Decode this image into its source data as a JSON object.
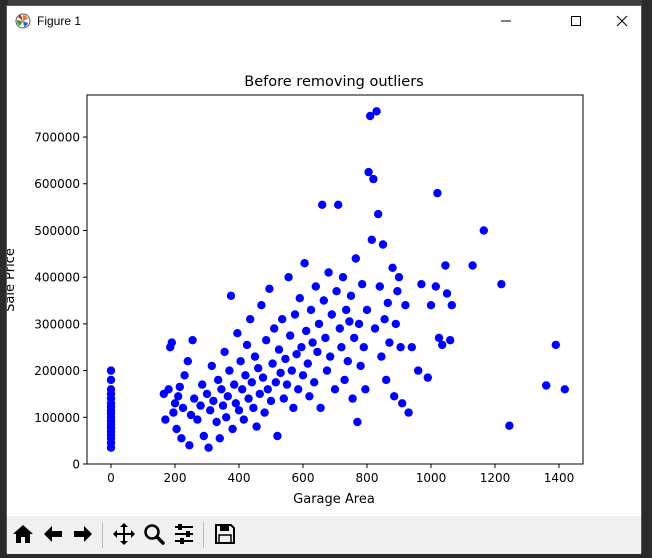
{
  "window": {
    "title": "Figure 1"
  },
  "toolbar": {
    "buttons": [
      {
        "name": "home-icon"
      },
      {
        "name": "back-arrow-icon"
      },
      {
        "name": "forward-arrow-icon"
      },
      {
        "name": "pan-icon"
      },
      {
        "name": "zoom-icon"
      },
      {
        "name": "configure-subplots-icon"
      },
      {
        "name": "save-icon"
      }
    ]
  },
  "colors": {
    "marker": "#0000ff",
    "axes_edge": "#000000"
  },
  "chart_data": {
    "type": "scatter",
    "title": "Before removing outliers",
    "xlabel": "Garage Area",
    "ylabel": "Sale Price",
    "xlim": [
      -75,
      1475
    ],
    "ylim": [
      0,
      790000
    ],
    "xticks": [
      0,
      200,
      400,
      600,
      800,
      1000,
      1200,
      1400
    ],
    "yticks": [
      0,
      100000,
      200000,
      300000,
      400000,
      500000,
      600000,
      700000
    ],
    "xtick_labels": [
      "0",
      "200",
      "400",
      "600",
      "800",
      "1000",
      "1200",
      "1400"
    ],
    "ytick_labels": [
      "0",
      "100000",
      "200000",
      "300000",
      "400000",
      "500000",
      "600000",
      "700000"
    ],
    "grid": false,
    "series": [
      {
        "values": [
          [
            0,
            35000
          ],
          [
            0,
            45000
          ],
          [
            0,
            55000
          ],
          [
            0,
            62000
          ],
          [
            0,
            70000
          ],
          [
            0,
            78000
          ],
          [
            0,
            85000
          ],
          [
            0,
            92000
          ],
          [
            0,
            100000
          ],
          [
            0,
            108000
          ],
          [
            0,
            115000
          ],
          [
            0,
            122000
          ],
          [
            0,
            130000
          ],
          [
            0,
            140000
          ],
          [
            0,
            150000
          ],
          [
            0,
            160000
          ],
          [
            0,
            180000
          ],
          [
            0,
            200000
          ],
          [
            165,
            150000
          ],
          [
            180,
            160000
          ],
          [
            185,
            250000
          ],
          [
            190,
            260000
          ],
          [
            170,
            95000
          ],
          [
            195,
            110000
          ],
          [
            200,
            130000
          ],
          [
            205,
            75000
          ],
          [
            210,
            145000
          ],
          [
            215,
            165000
          ],
          [
            220,
            55000
          ],
          [
            225,
            120000
          ],
          [
            230,
            190000
          ],
          [
            240,
            220000
          ],
          [
            245,
            40000
          ],
          [
            250,
            105000
          ],
          [
            255,
            265000
          ],
          [
            260,
            140000
          ],
          [
            270,
            95000
          ],
          [
            280,
            125000
          ],
          [
            285,
            170000
          ],
          [
            290,
            60000
          ],
          [
            300,
            150000
          ],
          [
            305,
            35000
          ],
          [
            310,
            115000
          ],
          [
            315,
            210000
          ],
          [
            320,
            135000
          ],
          [
            330,
            90000
          ],
          [
            335,
            180000
          ],
          [
            340,
            55000
          ],
          [
            345,
            160000
          ],
          [
            350,
            125000
          ],
          [
            355,
            240000
          ],
          [
            360,
            100000
          ],
          [
            365,
            145000
          ],
          [
            370,
            200000
          ],
          [
            375,
            360000
          ],
          [
            380,
            75000
          ],
          [
            385,
            170000
          ],
          [
            390,
            130000
          ],
          [
            395,
            280000
          ],
          [
            400,
            115000
          ],
          [
            405,
            220000
          ],
          [
            410,
            160000
          ],
          [
            415,
            95000
          ],
          [
            420,
            190000
          ],
          [
            425,
            255000
          ],
          [
            430,
            140000
          ],
          [
            435,
            310000
          ],
          [
            440,
            175000
          ],
          [
            445,
            120000
          ],
          [
            450,
            230000
          ],
          [
            455,
            80000
          ],
          [
            460,
            205000
          ],
          [
            465,
            150000
          ],
          [
            470,
            340000
          ],
          [
            475,
            185000
          ],
          [
            480,
            110000
          ],
          [
            485,
            265000
          ],
          [
            490,
            160000
          ],
          [
            495,
            375000
          ],
          [
            500,
            135000
          ],
          [
            505,
            215000
          ],
          [
            510,
            290000
          ],
          [
            515,
            175000
          ],
          [
            520,
            60000
          ],
          [
            525,
            245000
          ],
          [
            530,
            195000
          ],
          [
            535,
            310000
          ],
          [
            540,
            140000
          ],
          [
            545,
            225000
          ],
          [
            550,
            170000
          ],
          [
            555,
            400000
          ],
          [
            560,
            275000
          ],
          [
            565,
            200000
          ],
          [
            570,
            120000
          ],
          [
            575,
            320000
          ],
          [
            580,
            235000
          ],
          [
            585,
            160000
          ],
          [
            590,
            355000
          ],
          [
            595,
            250000
          ],
          [
            600,
            190000
          ],
          [
            605,
            430000
          ],
          [
            610,
            285000
          ],
          [
            615,
            215000
          ],
          [
            620,
            145000
          ],
          [
            625,
            330000
          ],
          [
            630,
            260000
          ],
          [
            635,
            175000
          ],
          [
            640,
            380000
          ],
          [
            645,
            240000
          ],
          [
            650,
            300000
          ],
          [
            655,
            120000
          ],
          [
            660,
            555000
          ],
          [
            665,
            350000
          ],
          [
            670,
            270000
          ],
          [
            675,
            200000
          ],
          [
            680,
            410000
          ],
          [
            685,
            230000
          ],
          [
            690,
            320000
          ],
          [
            700,
            160000
          ],
          [
            705,
            370000
          ],
          [
            710,
            555000
          ],
          [
            715,
            290000
          ],
          [
            720,
            250000
          ],
          [
            725,
            400000
          ],
          [
            730,
            180000
          ],
          [
            735,
            330000
          ],
          [
            740,
            220000
          ],
          [
            745,
            305000
          ],
          [
            750,
            360000
          ],
          [
            755,
            140000
          ],
          [
            760,
            270000
          ],
          [
            765,
            440000
          ],
          [
            770,
            90000
          ],
          [
            775,
            300000
          ],
          [
            780,
            210000
          ],
          [
            785,
            385000
          ],
          [
            790,
            250000
          ],
          [
            795,
            160000
          ],
          [
            800,
            330000
          ],
          [
            805,
            625000
          ],
          [
            810,
            745000
          ],
          [
            815,
            480000
          ],
          [
            820,
            610000
          ],
          [
            825,
            290000
          ],
          [
            830,
            755000
          ],
          [
            835,
            535000
          ],
          [
            840,
            380000
          ],
          [
            845,
            230000
          ],
          [
            850,
            470000
          ],
          [
            855,
            310000
          ],
          [
            860,
            180000
          ],
          [
            865,
            345000
          ],
          [
            870,
            260000
          ],
          [
            880,
            420000
          ],
          [
            885,
            145000
          ],
          [
            890,
            300000
          ],
          [
            895,
            370000
          ],
          [
            900,
            400000
          ],
          [
            905,
            250000
          ],
          [
            910,
            130000
          ],
          [
            920,
            340000
          ],
          [
            930,
            110000
          ],
          [
            940,
            250000
          ],
          [
            960,
            200000
          ],
          [
            970,
            385000
          ],
          [
            990,
            185000
          ],
          [
            1000,
            340000
          ],
          [
            1015,
            380000
          ],
          [
            1020,
            580000
          ],
          [
            1025,
            270000
          ],
          [
            1035,
            255000
          ],
          [
            1045,
            425000
          ],
          [
            1050,
            365000
          ],
          [
            1060,
            265000
          ],
          [
            1065,
            340000
          ],
          [
            1130,
            425000
          ],
          [
            1165,
            500000
          ],
          [
            1220,
            385000
          ],
          [
            1245,
            82000
          ],
          [
            1360,
            168000
          ],
          [
            1390,
            255000
          ],
          [
            1418,
            160000
          ]
        ]
      }
    ]
  }
}
